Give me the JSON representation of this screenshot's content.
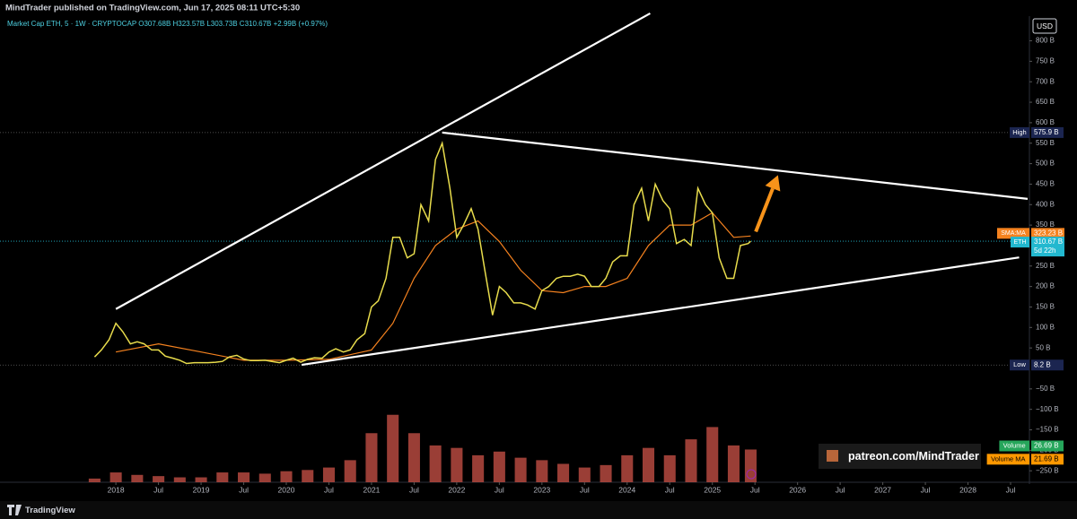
{
  "header": {
    "publisher": "MindTrader published on TradingView.com, Jun 17, 2025 08:11 UTC+5:30",
    "legend": "Market Cap ETH, 5 · 1W · CRYPTOCAP O307.68B H323.57B L303.73B C310.67B +2.99B (+0.97%)"
  },
  "chart_data": {
    "type": "line",
    "currency": "USD",
    "x": [
      2017.75,
      2017.83,
      2017.92,
      2018.0,
      2018.08,
      2018.17,
      2018.25,
      2018.33,
      2018.42,
      2018.5,
      2018.58,
      2018.67,
      2018.75,
      2018.83,
      2018.92,
      2019.0,
      2019.08,
      2019.17,
      2019.25,
      2019.33,
      2019.42,
      2019.5,
      2019.58,
      2019.67,
      2019.75,
      2019.83,
      2019.92,
      2020.0,
      2020.08,
      2020.17,
      2020.25,
      2020.33,
      2020.42,
      2020.5,
      2020.58,
      2020.67,
      2020.75,
      2020.83,
      2020.92,
      2021.0,
      2021.08,
      2021.17,
      2021.25,
      2021.33,
      2021.42,
      2021.5,
      2021.58,
      2021.67,
      2021.75,
      2021.83,
      2021.92,
      2022.0,
      2022.08,
      2022.17,
      2022.25,
      2022.33,
      2022.42,
      2022.5,
      2022.58,
      2022.67,
      2022.75,
      2022.83,
      2022.92,
      2023.0,
      2023.08,
      2023.17,
      2023.25,
      2023.33,
      2023.42,
      2023.5,
      2023.58,
      2023.67,
      2023.75,
      2023.83,
      2023.92,
      2024.0,
      2024.08,
      2024.17,
      2024.25,
      2024.33,
      2024.42,
      2024.5,
      2024.58,
      2024.67,
      2024.75,
      2024.83,
      2024.92,
      2025.0,
      2025.08,
      2025.17,
      2025.25,
      2025.33,
      2025.42,
      2025.45
    ],
    "series": [
      {
        "name": "ETH",
        "color": "#e8dc4c",
        "values": [
          28,
          45,
          70,
          110,
          90,
          60,
          65,
          60,
          45,
          45,
          30,
          25,
          20,
          12,
          14,
          14,
          14,
          15,
          17,
          28,
          32,
          23,
          19,
          19,
          20,
          17,
          14,
          20,
          25,
          15,
          22,
          26,
          25,
          40,
          48,
          40,
          45,
          70,
          85,
          150,
          165,
          220,
          320,
          320,
          270,
          280,
          400,
          360,
          510,
          550,
          440,
          320,
          350,
          390,
          340,
          240,
          130,
          200,
          185,
          160,
          160,
          155,
          145,
          190,
          200,
          220,
          225,
          225,
          230,
          225,
          200,
          200,
          220,
          260,
          275,
          275,
          400,
          440,
          360,
          450,
          410,
          390,
          305,
          315,
          300,
          440,
          400,
          380,
          270,
          220,
          220,
          300,
          305,
          310.67
        ]
      }
    ],
    "sma": {
      "name": "SMA:MA",
      "color": "#f5821f",
      "x": [
        2018.0,
        2018.5,
        2019.0,
        2019.5,
        2020.0,
        2020.5,
        2021.0,
        2021.25,
        2021.5,
        2021.75,
        2022.0,
        2022.25,
        2022.5,
        2022.75,
        2023.0,
        2023.25,
        2023.5,
        2023.75,
        2024.0,
        2024.25,
        2024.5,
        2024.75,
        2025.0,
        2025.25,
        2025.45
      ],
      "values": [
        40,
        60,
        40,
        20,
        20,
        22,
        45,
        110,
        220,
        300,
        340,
        360,
        310,
        240,
        190,
        185,
        200,
        200,
        220,
        300,
        350,
        350,
        380,
        320,
        323.23
      ]
    },
    "volume": {
      "name": "Volume",
      "color": "#b5493f",
      "x": [
        2017.75,
        2018.0,
        2018.25,
        2018.5,
        2018.75,
        2019.0,
        2019.25,
        2019.5,
        2019.75,
        2020.0,
        2020.25,
        2020.5,
        2020.75,
        2021.0,
        2021.25,
        2021.5,
        2021.75,
        2022.0,
        2022.25,
        2022.5,
        2022.75,
        2023.0,
        2023.25,
        2023.5,
        2023.75,
        2024.0,
        2024.25,
        2024.5,
        2024.75,
        2025.0,
        2025.25,
        2025.45
      ],
      "values": [
        3,
        8,
        6,
        5,
        4,
        4,
        8,
        8,
        7,
        9,
        10,
        12,
        18,
        40,
        55,
        40,
        30,
        28,
        22,
        25,
        20,
        18,
        15,
        12,
        14,
        22,
        28,
        22,
        35,
        45,
        30,
        26.69
      ]
    },
    "xlim": [
      2016.64,
      2028.7
    ],
    "xticks": [
      {
        "value": 2018,
        "label": "2018"
      },
      {
        "value": 2018.5,
        "label": "Jul"
      },
      {
        "value": 2019,
        "label": "2019"
      },
      {
        "value": 2019.5,
        "label": "Jul"
      },
      {
        "value": 2020,
        "label": "2020"
      },
      {
        "value": 2020.5,
        "label": "Jul"
      },
      {
        "value": 2021,
        "label": "2021"
      },
      {
        "value": 2021.5,
        "label": "Jul"
      },
      {
        "value": 2022,
        "label": "2022"
      },
      {
        "value": 2022.5,
        "label": "Jul"
      },
      {
        "value": 2023,
        "label": "2023"
      },
      {
        "value": 2023.5,
        "label": "Jul"
      },
      {
        "value": 2024,
        "label": "2024"
      },
      {
        "value": 2024.5,
        "label": "Jul"
      },
      {
        "value": 2025,
        "label": "2025"
      },
      {
        "value": 2025.5,
        "label": "Jul"
      },
      {
        "value": 2026,
        "label": "2026"
      },
      {
        "value": 2026.5,
        "label": "Jul"
      },
      {
        "value": 2027,
        "label": "2027"
      },
      {
        "value": 2027.5,
        "label": "Jul"
      },
      {
        "value": 2028,
        "label": "2028"
      },
      {
        "value": 2028.5,
        "label": "Jul"
      }
    ],
    "ylim": [
      -278,
      834
    ],
    "yticks": [
      {
        "value": 800,
        "label": "800 B"
      },
      {
        "value": 750,
        "label": "750 B"
      },
      {
        "value": 700,
        "label": "700 B"
      },
      {
        "value": 650,
        "label": "650 B"
      },
      {
        "value": 600,
        "label": "600 B"
      },
      {
        "value": 550,
        "label": "550 B"
      },
      {
        "value": 500,
        "label": "500 B"
      },
      {
        "value": 450,
        "label": "450 B"
      },
      {
        "value": 400,
        "label": "400 B"
      },
      {
        "value": 350,
        "label": "350 B"
      },
      {
        "value": 250,
        "label": "250 B"
      },
      {
        "value": 200,
        "label": "200 B"
      },
      {
        "value": 150,
        "label": "150 B"
      },
      {
        "value": 100,
        "label": "100 B"
      },
      {
        "value": 50,
        "label": "50 B"
      },
      {
        "value": -50,
        "label": "−50 B"
      },
      {
        "value": -100,
        "label": "−100 B"
      },
      {
        "value": -150,
        "label": "−150 B"
      },
      {
        "value": -200,
        "label": "−200 B"
      },
      {
        "value": -250,
        "label": "−250 B"
      }
    ],
    "y2lim": [
      0,
      95
    ],
    "price_labels": [
      {
        "name": "High",
        "value": 575.9,
        "label": "575.9 B",
        "color": "#1b2550"
      },
      {
        "name": "SMA:MA",
        "value": 323.23,
        "label": "323.23 B",
        "color": "#f5821f"
      },
      {
        "name": "ETH",
        "value": 310.67,
        "label": "310.67 B",
        "countdown": "5d 22h",
        "color": "#22b8cf"
      },
      {
        "name": "Low",
        "value": 8.2,
        "label": "8.2 B",
        "color": "#1b2550"
      }
    ],
    "volume_labels": [
      {
        "name": "Volume",
        "value": 26.69,
        "label": "26.69 B",
        "color": "#26a65b"
      },
      {
        "name": "Volume MA",
        "value": 21.69,
        "label": "21.69 B",
        "color": "#ff9800"
      }
    ],
    "trendlines": [
      {
        "color": "#ffffff",
        "points": [
          [
            2018.0,
            145
          ],
          [
            2024.27,
            867
          ]
        ]
      },
      {
        "color": "#ffffff",
        "points": [
          [
            2021.83,
            576
          ],
          [
            2028.7,
            414
          ]
        ]
      },
      {
        "color": "#ffffff",
        "points": [
          [
            2020.18,
            8.7
          ],
          [
            2028.6,
            271
          ]
        ]
      }
    ],
    "arrow": {
      "color": "#f7931a",
      "points": [
        [
          2025.51,
          334
        ],
        [
          2025.77,
          472
        ]
      ]
    },
    "watermark": "patreon.com/MindTrader"
  },
  "footer": {
    "brand": "TradingView"
  }
}
